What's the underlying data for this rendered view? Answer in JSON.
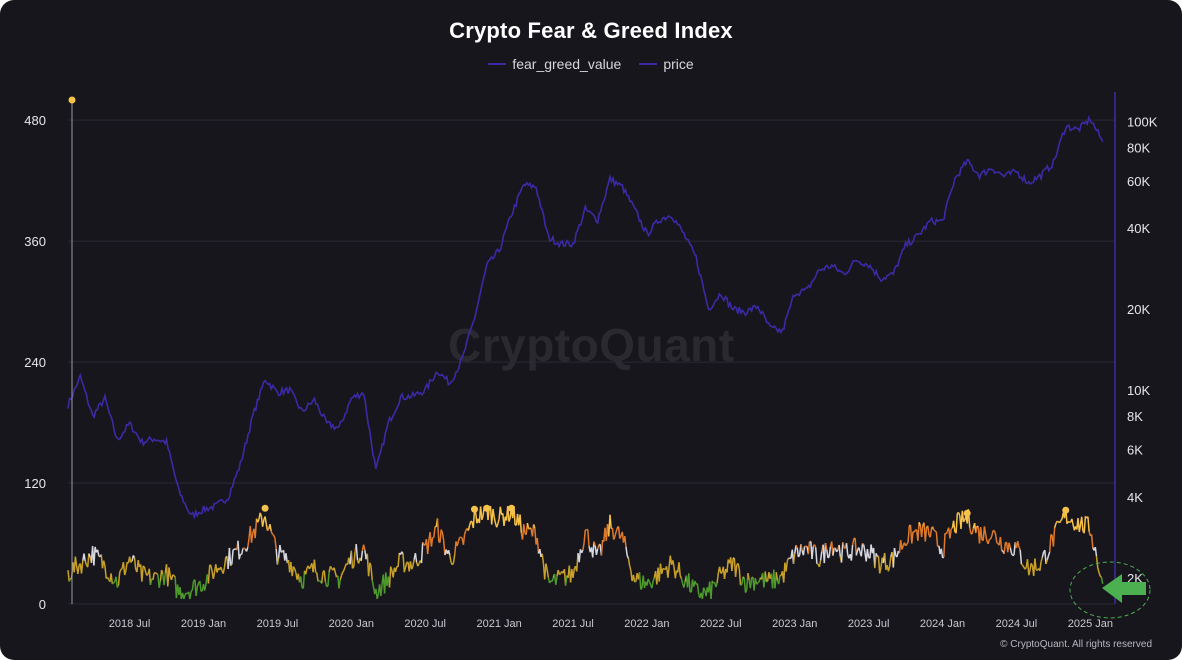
{
  "title": "Crypto Fear & Greed Index",
  "watermark": "CryptoQuant",
  "copyright": "© CryptoQuant. All rights reserved",
  "colors": {
    "background": "#17161c",
    "price": "#3b2aa6",
    "extreme_greed": "#f7c24a",
    "greed": "#e07a2b",
    "neutral": "#d8d8e0",
    "fear": "#c9a12a",
    "extreme_fear": "#4e9a2c",
    "arrow": "#4caf50"
  },
  "chart_data": {
    "type": "line",
    "title": "Crypto Fear & Greed Index",
    "legend": [
      "fear_greed_value",
      "price"
    ],
    "legend_placement": "top-center",
    "grid": true,
    "x": {
      "range": [
        "2018-02",
        "2025-03"
      ],
      "tick_labels": [
        "2018 Jul",
        "2019 Jan",
        "2019 Jul",
        "2020 Jan",
        "2020 Jul",
        "2021 Jan",
        "2021 Jul",
        "2022 Jan",
        "2022 Jul",
        "2023 Jan",
        "2023 Jul",
        "2024 Jan",
        "2024 Jul",
        "2025 Jan"
      ]
    },
    "y_left": {
      "series": "fear_greed_value",
      "range": [
        0,
        500
      ],
      "ticks": [
        0,
        120,
        240,
        360,
        480
      ]
    },
    "y_right": {
      "series": "price",
      "scale": "log",
      "tick_values": [
        2000,
        4000,
        6000,
        8000,
        10000,
        20000,
        40000,
        60000,
        80000,
        100000
      ],
      "tick_labels": [
        "2K",
        "4K",
        "6K",
        "8K",
        "10K",
        "20K",
        "40K",
        "60K",
        "80K",
        "100K"
      ]
    },
    "series": [
      {
        "name": "price",
        "axis": "right",
        "points": [
          [
            "2018-02",
            8800
          ],
          [
            "2018-03",
            11200
          ],
          [
            "2018-04",
            8000
          ],
          [
            "2018-05",
            9300
          ],
          [
            "2018-06",
            6500
          ],
          [
            "2018-07",
            7500
          ],
          [
            "2018-08",
            6400
          ],
          [
            "2018-09",
            6600
          ],
          [
            "2018-10",
            6400
          ],
          [
            "2018-11",
            4200
          ],
          [
            "2018-12",
            3400
          ],
          [
            "2019-01",
            3600
          ],
          [
            "2019-02",
            3700
          ],
          [
            "2019-03",
            4000
          ],
          [
            "2019-04",
            5300
          ],
          [
            "2019-05",
            8000
          ],
          [
            "2019-06",
            11000
          ],
          [
            "2019-07",
            9800
          ],
          [
            "2019-08",
            10000
          ],
          [
            "2019-09",
            8300
          ],
          [
            "2019-10",
            9200
          ],
          [
            "2019-11",
            7500
          ],
          [
            "2019-12",
            7200
          ],
          [
            "2020-01",
            9300
          ],
          [
            "2020-02",
            9800
          ],
          [
            "2020-03",
            5000
          ],
          [
            "2020-04",
            7500
          ],
          [
            "2020-05",
            9400
          ],
          [
            "2020-06",
            9500
          ],
          [
            "2020-07",
            10000
          ],
          [
            "2020-08",
            11800
          ],
          [
            "2020-09",
            10600
          ],
          [
            "2020-10",
            13000
          ],
          [
            "2020-11",
            18500
          ],
          [
            "2020-12",
            29000
          ],
          [
            "2021-01",
            33000
          ],
          [
            "2021-02",
            45000
          ],
          [
            "2021-03",
            58000
          ],
          [
            "2021-04",
            57000
          ],
          [
            "2021-05",
            37000
          ],
          [
            "2021-06",
            35000
          ],
          [
            "2021-07",
            35000
          ],
          [
            "2021-08",
            47000
          ],
          [
            "2021-09",
            43000
          ],
          [
            "2021-10",
            61000
          ],
          [
            "2021-11",
            57000
          ],
          [
            "2021-12",
            47000
          ],
          [
            "2022-01",
            38000
          ],
          [
            "2022-02",
            43000
          ],
          [
            "2022-03",
            45000
          ],
          [
            "2022-04",
            38000
          ],
          [
            "2022-05",
            31000
          ],
          [
            "2022-06",
            20000
          ],
          [
            "2022-07",
            23000
          ],
          [
            "2022-08",
            20000
          ],
          [
            "2022-09",
            19500
          ],
          [
            "2022-10",
            20500
          ],
          [
            "2022-11",
            17000
          ],
          [
            "2022-12",
            16500
          ],
          [
            "2023-01",
            23000
          ],
          [
            "2023-02",
            23500
          ],
          [
            "2023-03",
            28000
          ],
          [
            "2023-04",
            29000
          ],
          [
            "2023-05",
            27000
          ],
          [
            "2023-06",
            30500
          ],
          [
            "2023-07",
            29300
          ],
          [
            "2023-08",
            26000
          ],
          [
            "2023-09",
            27000
          ],
          [
            "2023-10",
            34500
          ],
          [
            "2023-11",
            37500
          ],
          [
            "2023-12",
            42500
          ],
          [
            "2024-01",
            42500
          ],
          [
            "2024-02",
            61000
          ],
          [
            "2024-03",
            71000
          ],
          [
            "2024-04",
            63000
          ],
          [
            "2024-05",
            67000
          ],
          [
            "2024-06",
            62500
          ],
          [
            "2024-07",
            65000
          ],
          [
            "2024-08",
            59000
          ],
          [
            "2024-09",
            63000
          ],
          [
            "2024-10",
            70000
          ],
          [
            "2024-11",
            96000
          ],
          [
            "2024-12",
            93000
          ],
          [
            "2025-01",
            102000
          ],
          [
            "2025-02",
            84000
          ]
        ]
      },
      {
        "name": "fear_greed_value",
        "axis": "left",
        "points": [
          [
            "2018-02",
            30
          ],
          [
            "2018-03",
            40
          ],
          [
            "2018-04",
            50
          ],
          [
            "2018-05",
            38
          ],
          [
            "2018-06",
            22
          ],
          [
            "2018-07",
            45
          ],
          [
            "2018-08",
            28
          ],
          [
            "2018-09",
            25
          ],
          [
            "2018-10",
            30
          ],
          [
            "2018-11",
            12
          ],
          [
            "2018-12",
            15
          ],
          [
            "2019-01",
            22
          ],
          [
            "2019-02",
            35
          ],
          [
            "2019-03",
            45
          ],
          [
            "2019-04",
            55
          ],
          [
            "2019-05",
            70
          ],
          [
            "2019-06",
            88
          ],
          [
            "2019-07",
            50
          ],
          [
            "2019-08",
            42
          ],
          [
            "2019-09",
            25
          ],
          [
            "2019-10",
            35
          ],
          [
            "2019-11",
            28
          ],
          [
            "2019-12",
            25
          ],
          [
            "2020-01",
            45
          ],
          [
            "2020-02",
            55
          ],
          [
            "2020-03",
            12
          ],
          [
            "2020-04",
            25
          ],
          [
            "2020-05",
            42
          ],
          [
            "2020-06",
            40
          ],
          [
            "2020-07",
            55
          ],
          [
            "2020-08",
            75
          ],
          [
            "2020-09",
            45
          ],
          [
            "2020-10",
            60
          ],
          [
            "2020-11",
            85
          ],
          [
            "2020-12",
            93
          ],
          [
            "2021-01",
            85
          ],
          [
            "2021-02",
            92
          ],
          [
            "2021-03",
            72
          ],
          [
            "2021-04",
            70
          ],
          [
            "2021-05",
            20
          ],
          [
            "2021-06",
            25
          ],
          [
            "2021-07",
            30
          ],
          [
            "2021-08",
            72
          ],
          [
            "2021-09",
            45
          ],
          [
            "2021-10",
            78
          ],
          [
            "2021-11",
            65
          ],
          [
            "2021-12",
            25
          ],
          [
            "2022-01",
            20
          ],
          [
            "2022-02",
            30
          ],
          [
            "2022-03",
            40
          ],
          [
            "2022-04",
            25
          ],
          [
            "2022-05",
            12
          ],
          [
            "2022-06",
            10
          ],
          [
            "2022-07",
            28
          ],
          [
            "2022-08",
            40
          ],
          [
            "2022-09",
            22
          ],
          [
            "2022-10",
            25
          ],
          [
            "2022-11",
            22
          ],
          [
            "2022-12",
            28
          ],
          [
            "2023-01",
            50
          ],
          [
            "2023-02",
            55
          ],
          [
            "2023-03",
            45
          ],
          [
            "2023-04",
            60
          ],
          [
            "2023-05",
            50
          ],
          [
            "2023-06",
            55
          ],
          [
            "2023-07",
            52
          ],
          [
            "2023-08",
            40
          ],
          [
            "2023-09",
            45
          ],
          [
            "2023-10",
            65
          ],
          [
            "2023-11",
            72
          ],
          [
            "2023-12",
            70
          ],
          [
            "2024-01",
            55
          ],
          [
            "2024-02",
            78
          ],
          [
            "2024-03",
            85
          ],
          [
            "2024-04",
            70
          ],
          [
            "2024-05",
            70
          ],
          [
            "2024-06",
            60
          ],
          [
            "2024-07",
            55
          ],
          [
            "2024-08",
            35
          ],
          [
            "2024-09",
            40
          ],
          [
            "2024-10",
            65
          ],
          [
            "2024-11",
            88
          ],
          [
            "2024-12",
            80
          ],
          [
            "2025-01",
            75
          ],
          [
            "2025-02",
            20
          ]
        ]
      }
    ],
    "markers": [
      {
        "date": "2018-02",
        "value": 500
      },
      {
        "date": "2019-06",
        "value": 95
      },
      {
        "date": "2020-11",
        "value": 94
      },
      {
        "date": "2020-12",
        "value": 95
      },
      {
        "date": "2021-02",
        "value": 95
      },
      {
        "date": "2024-03",
        "value": 90
      },
      {
        "date": "2024-11",
        "value": 93
      }
    ]
  }
}
